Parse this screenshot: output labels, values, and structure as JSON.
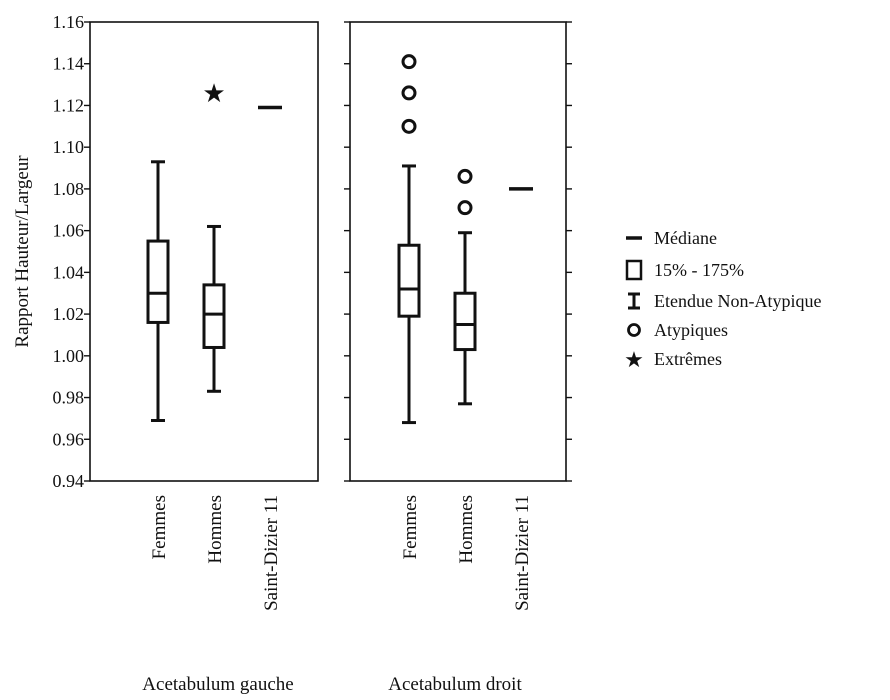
{
  "chart_data": {
    "type": "boxplot",
    "ylabel": "Rapport Hauteur/Largeur",
    "ylim": [
      0.94,
      1.16
    ],
    "yticks": [
      "1.16",
      "1.14",
      "1.12",
      "1.10",
      "1.08",
      "1.06",
      "1.04",
      "1.02",
      "1.00",
      "0.98",
      "0.96",
      "0.94"
    ],
    "tick_values": [
      1.16,
      1.14,
      1.12,
      1.1,
      1.08,
      1.06,
      1.04,
      1.02,
      1.0,
      0.98,
      0.96,
      0.94
    ],
    "grid": false,
    "legend_position": "right",
    "panels": [
      {
        "label": "Acetabulum gauche",
        "groups": [
          {
            "category": "Femmes",
            "whisker_low": 0.969,
            "q1": 1.016,
            "median": 1.03,
            "q3": 1.055,
            "whisker_high": 1.093,
            "outliers": [],
            "extremes": []
          },
          {
            "category": "Hommes",
            "whisker_low": 0.983,
            "q1": 1.004,
            "median": 1.02,
            "q3": 1.034,
            "whisker_high": 1.062,
            "outliers": [],
            "extremes": [
              1.126
            ]
          },
          {
            "category": "Saint-Dizier 11",
            "median": 1.119
          }
        ]
      },
      {
        "label": "Acetabulum droit",
        "groups": [
          {
            "category": "Femmes",
            "whisker_low": 0.968,
            "q1": 1.019,
            "median": 1.032,
            "q3": 1.053,
            "whisker_high": 1.091,
            "outliers": [
              1.11,
              1.126,
              1.141
            ],
            "extremes": []
          },
          {
            "category": "Hommes",
            "whisker_low": 0.977,
            "q1": 1.003,
            "median": 1.015,
            "q3": 1.03,
            "whisker_high": 1.059,
            "outliers": [
              1.071,
              1.086
            ],
            "extremes": []
          },
          {
            "category": "Saint-Dizier 11",
            "median": 1.08
          }
        ]
      }
    ],
    "legend": [
      {
        "symbol": "median",
        "label": "Médiane"
      },
      {
        "symbol": "box",
        "label": "15% - 175%"
      },
      {
        "symbol": "whisker",
        "label": "Etendue Non-Atypique"
      },
      {
        "symbol": "outlier",
        "label": "Atypiques"
      },
      {
        "symbol": "extreme",
        "label": "Extrêmes"
      }
    ]
  }
}
